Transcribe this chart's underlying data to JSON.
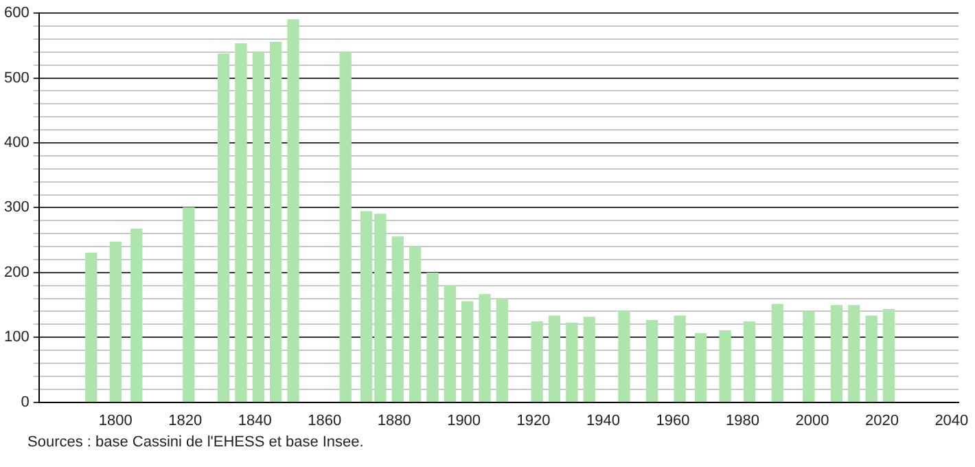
{
  "chart_data": {
    "type": "bar",
    "x": [
      1793,
      1800,
      1806,
      1821,
      1831,
      1836,
      1841,
      1846,
      1851,
      1866,
      1872,
      1876,
      1881,
      1886,
      1891,
      1896,
      1901,
      1906,
      1911,
      1921,
      1926,
      1931,
      1936,
      1946,
      1954,
      1962,
      1968,
      1975,
      1982,
      1990,
      1999,
      2007,
      2012,
      2017,
      2022
    ],
    "values": [
      230,
      247,
      267,
      300,
      537,
      553,
      540,
      555,
      590,
      540,
      294,
      290,
      255,
      240,
      199,
      180,
      155,
      166,
      159,
      124,
      133,
      122,
      131,
      141,
      126,
      133,
      106,
      110,
      124,
      151,
      139,
      149,
      149,
      133,
      143
    ],
    "color": "#ade5ad",
    "xlim": [
      1778,
      2042
    ],
    "xticks": [
      1800,
      1820,
      1840,
      1860,
      1880,
      1900,
      1920,
      1940,
      1960,
      1980,
      2000,
      2020,
      2040
    ],
    "ylim": [
      0,
      600
    ],
    "yticks": [
      0,
      {
        "value": 20,
        "label": null
      },
      {
        "value": 40,
        "label": null
      },
      {
        "value": 60,
        "label": null
      },
      {
        "value": 80,
        "label": null
      },
      100,
      {
        "value": 120,
        "label": null
      },
      {
        "value": 140,
        "label": null
      },
      {
        "value": 160,
        "label": null
      },
      {
        "value": 180,
        "label": null
      },
      200,
      {
        "value": 220,
        "label": null
      },
      {
        "value": 240,
        "label": null
      },
      {
        "value": 260,
        "label": null
      },
      {
        "value": 280,
        "label": null
      },
      300,
      {
        "value": 320,
        "label": null
      },
      {
        "value": 340,
        "label": null
      },
      {
        "value": 360,
        "label": null
      },
      {
        "value": 380,
        "label": null
      },
      400,
      {
        "value": 420,
        "label": null
      },
      {
        "value": 440,
        "label": null
      },
      {
        "value": 460,
        "label": null
      },
      {
        "value": 480,
        "label": null
      },
      500,
      {
        "value": 520,
        "label": null
      },
      {
        "value": 540,
        "label": null
      },
      {
        "value": 560,
        "label": null
      },
      {
        "value": 580,
        "label": null
      },
      600
    ],
    "grid": "y",
    "legend": false,
    "annotations": [
      "Sources : base Cassini de l'EHESS et base Insee."
    ]
  }
}
